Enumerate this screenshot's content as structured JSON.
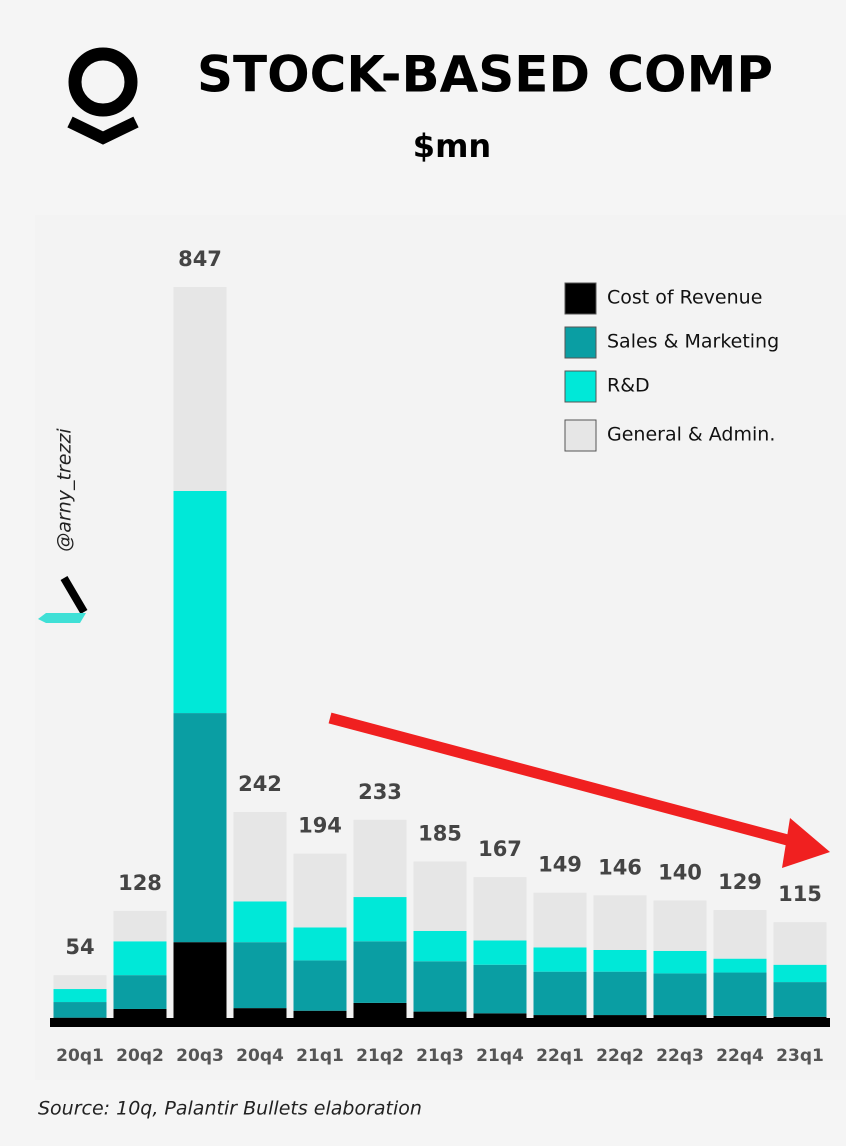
{
  "chart_data": {
    "type": "stacked-bar",
    "title": "STOCK-BASED COMP",
    "subtitle": "$mn",
    "watermark": "@arny_trezzi",
    "source": "Source: 10q, Palantir Bullets elaboration",
    "categories": [
      "20q1",
      "20q2",
      "20q3",
      "20q4",
      "21q1",
      "21q2",
      "21q3",
      "21q4",
      "22q1",
      "22q2",
      "22q3",
      "22q4",
      "23q1"
    ],
    "series": [
      {
        "name": "Cost of Revenue",
        "color": "#000000",
        "values": [
          5,
          15,
          92,
          16,
          13,
          22,
          12,
          10,
          8,
          8,
          8,
          7,
          6
        ]
      },
      {
        "name": "Sales & Marketing",
        "color": "#0a9ea3",
        "values": [
          18,
          39,
          264,
          76,
          58,
          71,
          58,
          56,
          50,
          50,
          48,
          50,
          40
        ]
      },
      {
        "name": "R&D",
        "color": "#00e8d8",
        "values": [
          15,
          39,
          256,
          47,
          38,
          51,
          35,
          28,
          28,
          25,
          26,
          16,
          20
        ]
      },
      {
        "name": "General & Admin.",
        "color": "#e6e6e6",
        "values": [
          16,
          35,
          235,
          103,
          85,
          89,
          80,
          73,
          63,
          63,
          58,
          56,
          49
        ]
      }
    ],
    "totals": [
      54,
      128,
      847,
      242,
      194,
      233,
      185,
      167,
      149,
      146,
      140,
      129,
      115
    ],
    "ylim": [
      0,
      900
    ],
    "legend": "top-right"
  }
}
